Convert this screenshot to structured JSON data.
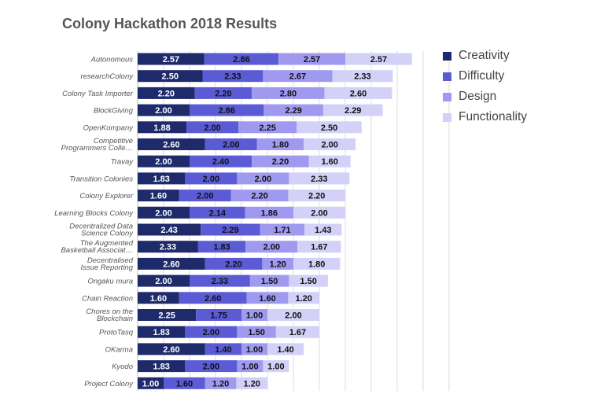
{
  "chart_data": {
    "type": "bar",
    "orientation": "horizontal",
    "stacked": true,
    "title": "Colony Hackathon 2018 Results",
    "xlabel": "",
    "ylabel": "",
    "xlim": [
      0,
      12
    ],
    "grid": true,
    "legend_position": "right",
    "categories": [
      "Autonomous",
      "researchColony",
      "Colony Task Importer",
      "BlockGiving",
      "OpenKompany",
      "Competitive Programmers Colle…",
      "Travay",
      "Transition Colonies",
      "Colony Explorer",
      "Learning Blocks Colony",
      "Decentralized Data Science Colony",
      "The Augmented Basketball Associat…",
      "Decentralised Issue Reporting",
      "Ongaku mura",
      "Chain Reaction",
      "Chores on the Blockchain",
      "ProtoTasq",
      "OKarma",
      "Kyodo",
      "Project Colony"
    ],
    "series": [
      {
        "name": "Creativity",
        "color": "#1f2a6b",
        "values": [
          2.57,
          2.5,
          2.2,
          2.0,
          1.88,
          2.6,
          2.0,
          1.83,
          1.6,
          2.0,
          2.43,
          2.33,
          2.6,
          2.0,
          1.6,
          2.25,
          1.83,
          2.6,
          1.83,
          1.0
        ],
        "labels": [
          "2.57",
          "2.50",
          "2.20",
          "2.00",
          "1.88",
          "2.60",
          "2.00",
          "1.83",
          "1.60",
          "2.00",
          "2.43",
          "2.33",
          "2.60",
          "2.00",
          "1.60",
          "2.25",
          "1.83",
          "2.60",
          "1.83",
          "1.00"
        ]
      },
      {
        "name": "Difficulty",
        "color": "#5b5bd6",
        "values": [
          2.86,
          2.33,
          2.2,
          2.86,
          2.0,
          2.0,
          2.4,
          2.0,
          2.0,
          2.14,
          2.29,
          1.83,
          2.2,
          2.33,
          2.6,
          1.75,
          2.0,
          1.4,
          2.0,
          1.6
        ],
        "labels": [
          "2.86",
          "2.33",
          "2.20",
          "2.86",
          "2.00",
          "2.00",
          "2.40",
          "2.00",
          "2.00",
          "2.14",
          "2.29",
          "1.83",
          "2.20",
          "2.33",
          "2.60",
          "1.75",
          "2.00",
          "1.40",
          "2.00",
          "1.60"
        ]
      },
      {
        "name": "Design",
        "color": "#9f9af0",
        "values": [
          2.57,
          2.67,
          2.8,
          2.29,
          2.25,
          1.8,
          2.2,
          2.0,
          2.2,
          1.86,
          1.71,
          2.0,
          1.2,
          1.5,
          1.6,
          1.0,
          1.5,
          1.0,
          1.0,
          1.2
        ],
        "labels": [
          "2.57",
          "2.67",
          "2.80",
          "2.29",
          "2.25",
          "1.80",
          "2.20",
          "2.00",
          "2.20",
          "1.86",
          "1.71",
          "2.00",
          "1.20",
          "1.50",
          "1.60",
          "1.00",
          "1.50",
          "1.00",
          "1.00",
          "1.20"
        ]
      },
      {
        "name": "Functionality",
        "color": "#d3d1f7",
        "values": [
          2.57,
          2.33,
          2.6,
          2.29,
          2.5,
          2.0,
          1.6,
          2.33,
          2.2,
          2.0,
          1.43,
          1.67,
          1.8,
          1.5,
          1.2,
          2.0,
          1.67,
          1.4,
          1.0,
          1.2
        ],
        "labels": [
          "2.57",
          "2.33",
          "2.60",
          "2.29",
          "2.50",
          "2.00",
          "1.60",
          "2.33",
          "2.20",
          "2.00",
          "1.43",
          "1.67",
          "1.80",
          "1.50",
          "1.20",
          "2.00",
          "1.67",
          "1.40",
          "1.00",
          "1.20"
        ]
      }
    ]
  }
}
